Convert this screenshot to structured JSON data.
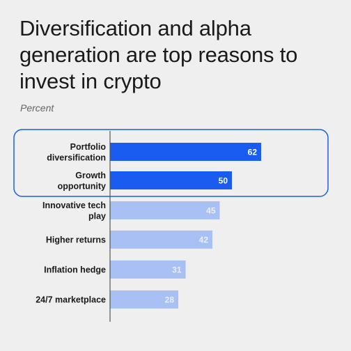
{
  "title": "Diversification and alpha generation are top reasons to invest in crypto",
  "subtitle": "Percent",
  "chart_data": {
    "type": "bar",
    "orientation": "horizontal",
    "categories": [
      [
        "Portfolio",
        "diversification"
      ],
      [
        "Growth",
        "opportunity"
      ],
      [
        "Innovative tech",
        "play"
      ],
      [
        "Higher returns"
      ],
      [
        "Inflation hedge"
      ],
      [
        "24/7 marketplace"
      ]
    ],
    "values": [
      62,
      50,
      45,
      42,
      31,
      28
    ],
    "highlighted": [
      true,
      true,
      false,
      false,
      false,
      false
    ],
    "xlim": [
      0,
      75
    ],
    "colors": {
      "highlight": "#1a5cf0",
      "normal": "#a9c0f5",
      "highlight_box": "#1a5cf0",
      "axis": "#555555",
      "label_on_highlight": "#ffffff",
      "label_on_normal": "#e8eefc"
    }
  }
}
